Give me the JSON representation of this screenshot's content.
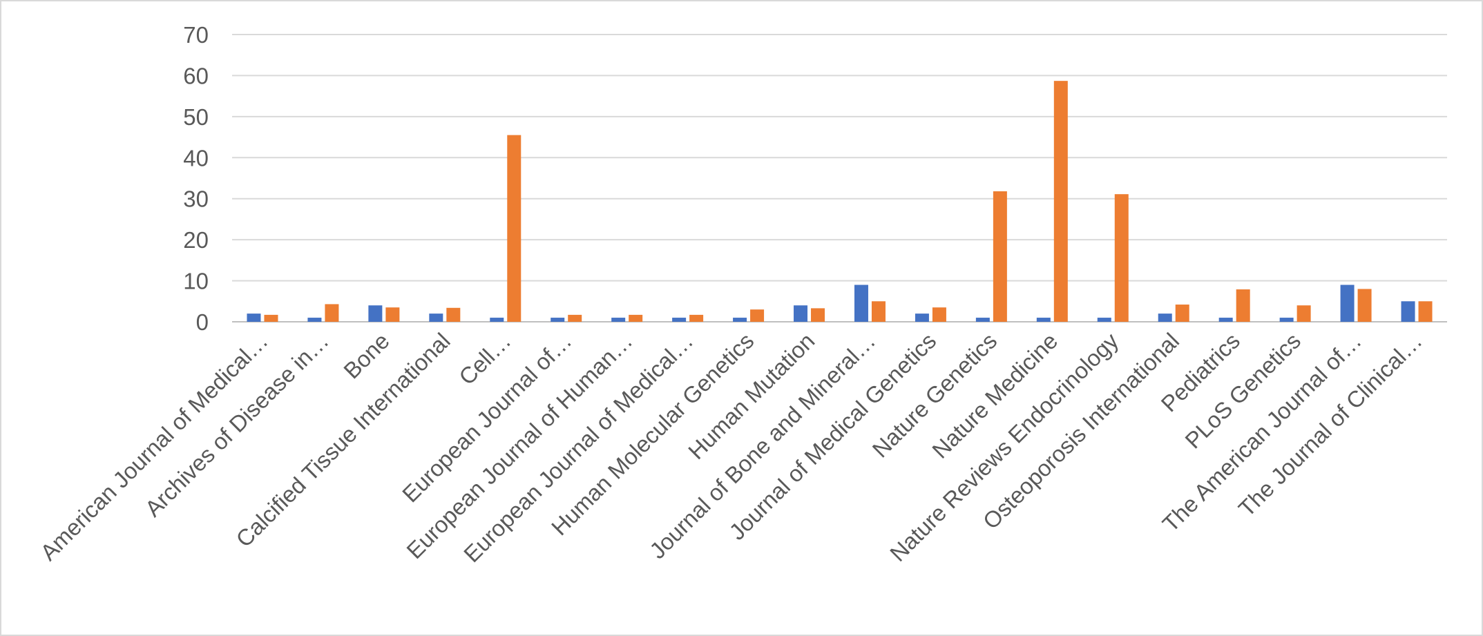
{
  "chart_data": {
    "type": "bar",
    "title": "",
    "xlabel": "",
    "ylabel": "",
    "ylim": [
      0,
      70
    ],
    "yticks": [
      0,
      10,
      20,
      30,
      40,
      50,
      60,
      70
    ],
    "grid": true,
    "legend": "none",
    "categories": [
      "American Journal of Medical…",
      "Archives of Disease in…",
      "Bone",
      "Calcified Tissue International",
      "Cell…",
      "European Journal of…",
      "European Journal of Human…",
      "European Journal of Medical…",
      "Human Molecular Genetics",
      "Human Mutation",
      "Journal of Bone and Mineral…",
      "Journal of Medical Genetics",
      "Nature Genetics",
      "Nature Medicine",
      "Nature Reviews Endocrinology",
      "Osteoporosis International",
      "Pediatrics",
      "PLoS Genetics",
      "The American Journal of…",
      "The Journal of Clinical…"
    ],
    "series": [
      {
        "color": "#4472c4",
        "values": [
          2,
          1,
          4,
          2,
          1,
          1,
          1,
          1,
          1,
          4,
          9,
          2,
          1,
          1,
          1,
          2,
          1,
          1,
          9,
          5
        ]
      },
      {
        "color": "#ed7d31",
        "values": [
          1.7,
          4.3,
          3.5,
          3.4,
          45.5,
          1.7,
          1.7,
          1.7,
          3.0,
          3.3,
          5.0,
          3.5,
          31.8,
          58.7,
          31.1,
          4.2,
          7.9,
          4.0,
          8.0,
          5.0
        ]
      }
    ]
  }
}
